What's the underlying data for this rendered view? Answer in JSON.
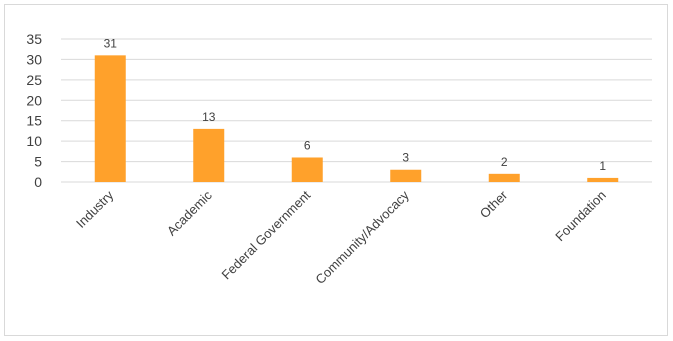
{
  "chart_data": {
    "type": "bar",
    "title": "",
    "xlabel": "",
    "ylabel": "",
    "categories": [
      "Industry",
      "Academic",
      "Federal Government",
      "Community/Advocacy",
      "Other",
      "Foundation"
    ],
    "values": [
      31,
      13,
      6,
      3,
      2,
      1
    ],
    "data_labels": [
      "31",
      "13",
      "6",
      "3",
      "2",
      "1"
    ],
    "ylim": [
      0,
      35
    ],
    "yticks": [
      "0",
      "5",
      "10",
      "15",
      "20",
      "25",
      "30",
      "35"
    ],
    "grid": true,
    "legend": "none",
    "colors": {
      "bar": "#FFA12B",
      "grid": "#d9d9d9",
      "text": "#404040"
    }
  }
}
